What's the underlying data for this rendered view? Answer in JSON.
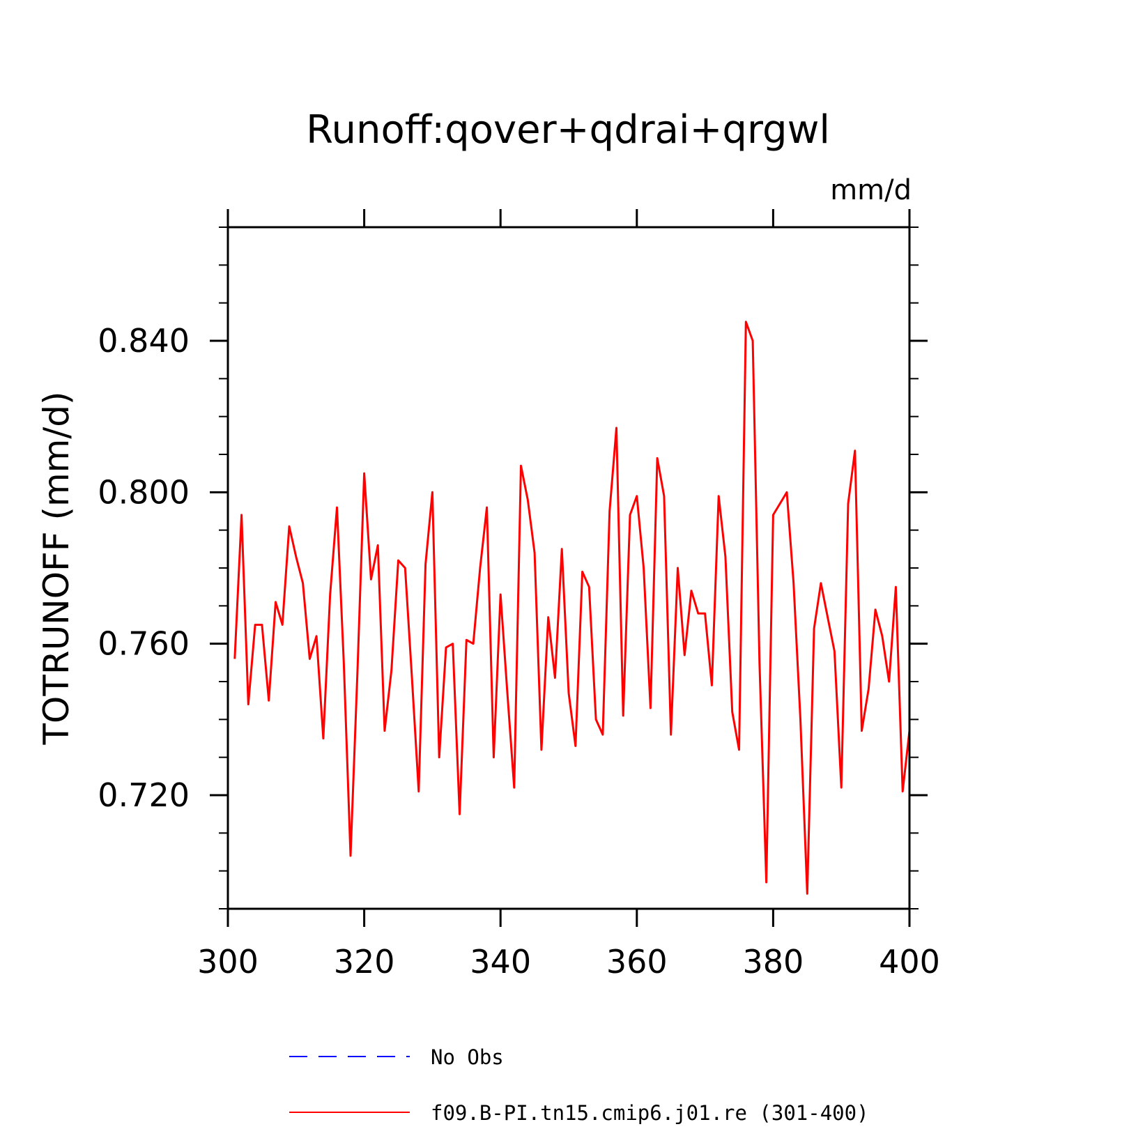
{
  "chart_data": {
    "type": "line",
    "title": "Runoff:qover+qdrai+qrgwl",
    "units_label": "mm/d",
    "ylabel": "TOTRUNOFF   (mm/d)",
    "xlabel": "",
    "xlim": [
      300,
      400
    ],
    "ylim": [
      0.69,
      0.87
    ],
    "x_ticks": [
      300,
      320,
      340,
      360,
      380,
      400
    ],
    "x_tick_labels": [
      "300",
      "320",
      "340",
      "360",
      "380",
      "400"
    ],
    "y_ticks": [
      0.72,
      0.76,
      0.8,
      0.84
    ],
    "y_tick_labels": [
      "0.720",
      "0.760",
      "0.800",
      "0.840"
    ],
    "legend_position": "bottom",
    "legend": [
      {
        "name": "No Obs",
        "color": "#0000ff",
        "style": "dashed"
      },
      {
        "name": "f09.B-PI.tn15.cmip6.j01.re (301-400)",
        "color": "#ff0000",
        "style": "solid"
      }
    ],
    "series": [
      {
        "name": "f09.B-PI.tn15.cmip6.j01.re (301-400)",
        "color": "#ff0000",
        "x": [
          301,
          302,
          303,
          304,
          305,
          306,
          307,
          308,
          309,
          310,
          311,
          312,
          313,
          314,
          315,
          316,
          317,
          318,
          319,
          320,
          321,
          322,
          323,
          324,
          325,
          326,
          327,
          328,
          329,
          330,
          331,
          332,
          333,
          334,
          335,
          336,
          337,
          338,
          339,
          340,
          341,
          342,
          343,
          344,
          345,
          346,
          347,
          348,
          349,
          350,
          351,
          352,
          353,
          354,
          355,
          356,
          357,
          358,
          359,
          360,
          361,
          362,
          363,
          364,
          365,
          366,
          367,
          368,
          369,
          370,
          371,
          372,
          373,
          374,
          375,
          376,
          377,
          378,
          379,
          380,
          381,
          382,
          383,
          384,
          385,
          386,
          387,
          388,
          389,
          390,
          391,
          392,
          393,
          394,
          395,
          396,
          397,
          398,
          399,
          400
        ],
        "values": [
          0.756,
          0.794,
          0.744,
          0.765,
          0.765,
          0.745,
          0.771,
          0.765,
          0.791,
          0.783,
          0.776,
          0.756,
          0.762,
          0.735,
          0.773,
          0.796,
          0.755,
          0.704,
          0.752,
          0.805,
          0.777,
          0.786,
          0.737,
          0.753,
          0.782,
          0.78,
          0.751,
          0.721,
          0.781,
          0.8,
          0.73,
          0.759,
          0.76,
          0.715,
          0.761,
          0.76,
          0.78,
          0.796,
          0.73,
          0.773,
          0.747,
          0.722,
          0.807,
          0.798,
          0.784,
          0.732,
          0.767,
          0.751,
          0.785,
          0.747,
          0.733,
          0.779,
          0.775,
          0.74,
          0.736,
          0.795,
          0.817,
          0.741,
          0.794,
          0.799,
          0.78,
          0.743,
          0.809,
          0.799,
          0.736,
          0.78,
          0.757,
          0.774,
          0.768,
          0.768,
          0.749,
          0.799,
          0.783,
          0.742,
          0.732,
          0.845,
          0.84,
          0.755,
          0.697,
          0.794,
          0.797,
          0.8,
          0.776,
          0.74,
          0.694,
          0.764,
          0.776,
          0.767,
          0.758,
          0.722,
          0.797,
          0.811,
          0.737,
          0.748,
          0.769,
          0.762,
          0.75,
          0.775,
          0.721,
          0.737
        ]
      }
    ]
  }
}
